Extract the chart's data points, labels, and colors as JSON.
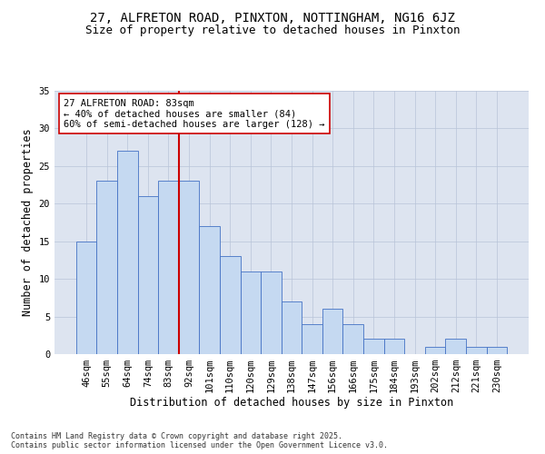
{
  "title": "27, ALFRETON ROAD, PINXTON, NOTTINGHAM, NG16 6JZ",
  "subtitle": "Size of property relative to detached houses in Pinxton",
  "xlabel": "Distribution of detached houses by size in Pinxton",
  "ylabel": "Number of detached properties",
  "categories": [
    "46sqm",
    "55sqm",
    "64sqm",
    "74sqm",
    "83sqm",
    "92sqm",
    "101sqm",
    "110sqm",
    "120sqm",
    "129sqm",
    "138sqm",
    "147sqm",
    "156sqm",
    "166sqm",
    "175sqm",
    "184sqm",
    "193sqm",
    "202sqm",
    "212sqm",
    "221sqm",
    "230sqm"
  ],
  "values": [
    15,
    23,
    27,
    21,
    23,
    23,
    17,
    13,
    11,
    11,
    7,
    4,
    6,
    4,
    2,
    2,
    0,
    1,
    2,
    1,
    1
  ],
  "bar_color": "#c5d9f1",
  "bar_edge_color": "#4472c4",
  "reference_line_bin": 4,
  "reference_line_color": "#cc0000",
  "annotation_text": "27 ALFRETON ROAD: 83sqm\n← 40% of detached houses are smaller (84)\n60% of semi-detached houses are larger (128) →",
  "annotation_box_color": "#ffffff",
  "annotation_box_edge": "#cc0000",
  "ylim": [
    0,
    35
  ],
  "yticks": [
    0,
    5,
    10,
    15,
    20,
    25,
    30,
    35
  ],
  "bg_color": "#dde4f0",
  "footer": "Contains HM Land Registry data © Crown copyright and database right 2025.\nContains public sector information licensed under the Open Government Licence v3.0.",
  "title_fontsize": 10,
  "subtitle_fontsize": 9,
  "tick_fontsize": 7.5,
  "label_fontsize": 8.5,
  "annotation_fontsize": 7.5,
  "footer_fontsize": 6
}
